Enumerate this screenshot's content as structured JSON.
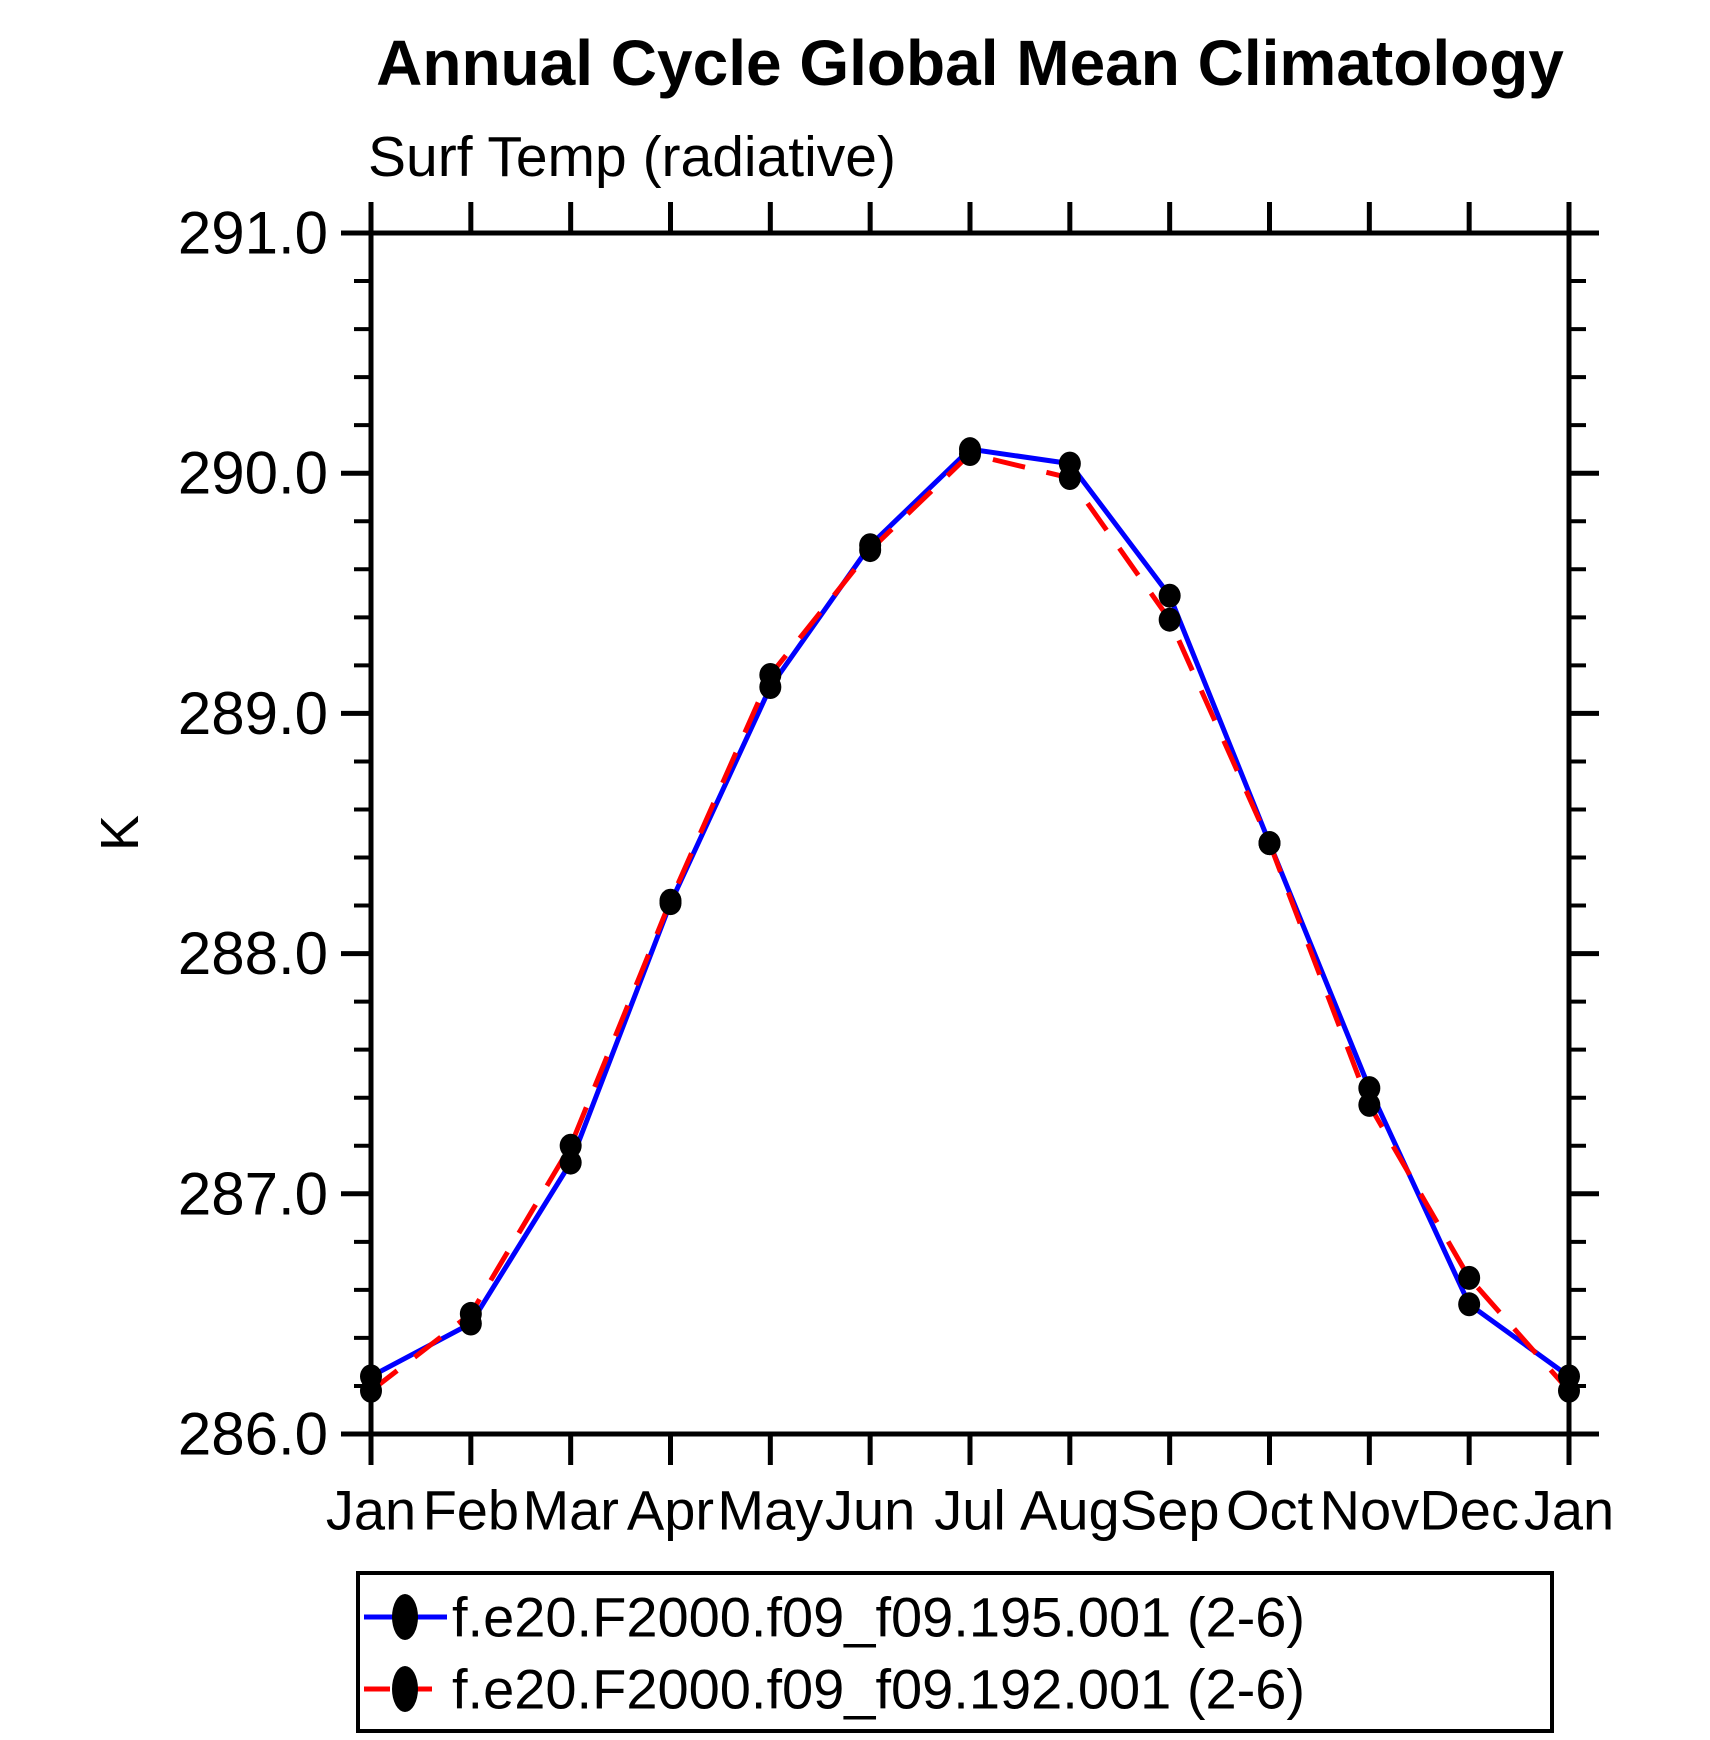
{
  "title": "Annual Cycle Global Mean Climatology",
  "subtitle": "Surf Temp (radiative)",
  "ylabel": "K",
  "chart_data": {
    "type": "line",
    "title": "Annual Cycle Global Mean Climatology",
    "subtitle": "Surf Temp (radiative)",
    "ylabel": "K",
    "xlabel": "",
    "categories": [
      "Jan",
      "Feb",
      "Mar",
      "Apr",
      "May",
      "Jun",
      "Jul",
      "Aug",
      "Sep",
      "Oct",
      "Nov",
      "Dec",
      "Jan"
    ],
    "ylim": [
      286.0,
      291.0
    ],
    "ytick_major_step": 1.0,
    "ytick_minor_step": 0.2,
    "ytick_labels": [
      "286.0",
      "287.0",
      "288.0",
      "289.0",
      "290.0",
      "291.0"
    ],
    "grid": false,
    "frame": "box-with-outward-ticks",
    "legend_position": "bottom",
    "series": [
      {
        "name": "f.e20.F2000.f09_f09.195.001 (2-6)",
        "line_color": "#0000ff",
        "line_style": "solid",
        "marker": "filled-black-dot",
        "values": [
          286.24,
          286.46,
          287.13,
          288.21,
          289.11,
          289.7,
          290.1,
          290.04,
          289.49,
          288.46,
          287.44,
          286.54,
          286.24
        ]
      },
      {
        "name": "f.e20.F2000.f09_f09.192.001 (2-6)",
        "line_color": "#ff0000",
        "line_style": "dashed",
        "marker": "filled-black-dot",
        "values": [
          286.18,
          286.5,
          287.2,
          288.22,
          289.16,
          289.68,
          290.08,
          289.98,
          289.39,
          288.46,
          287.37,
          286.65,
          286.18
        ]
      }
    ],
    "colors": {
      "axis": "#000000",
      "text": "#000000",
      "marker": "#000000",
      "background": "#ffffff"
    }
  }
}
